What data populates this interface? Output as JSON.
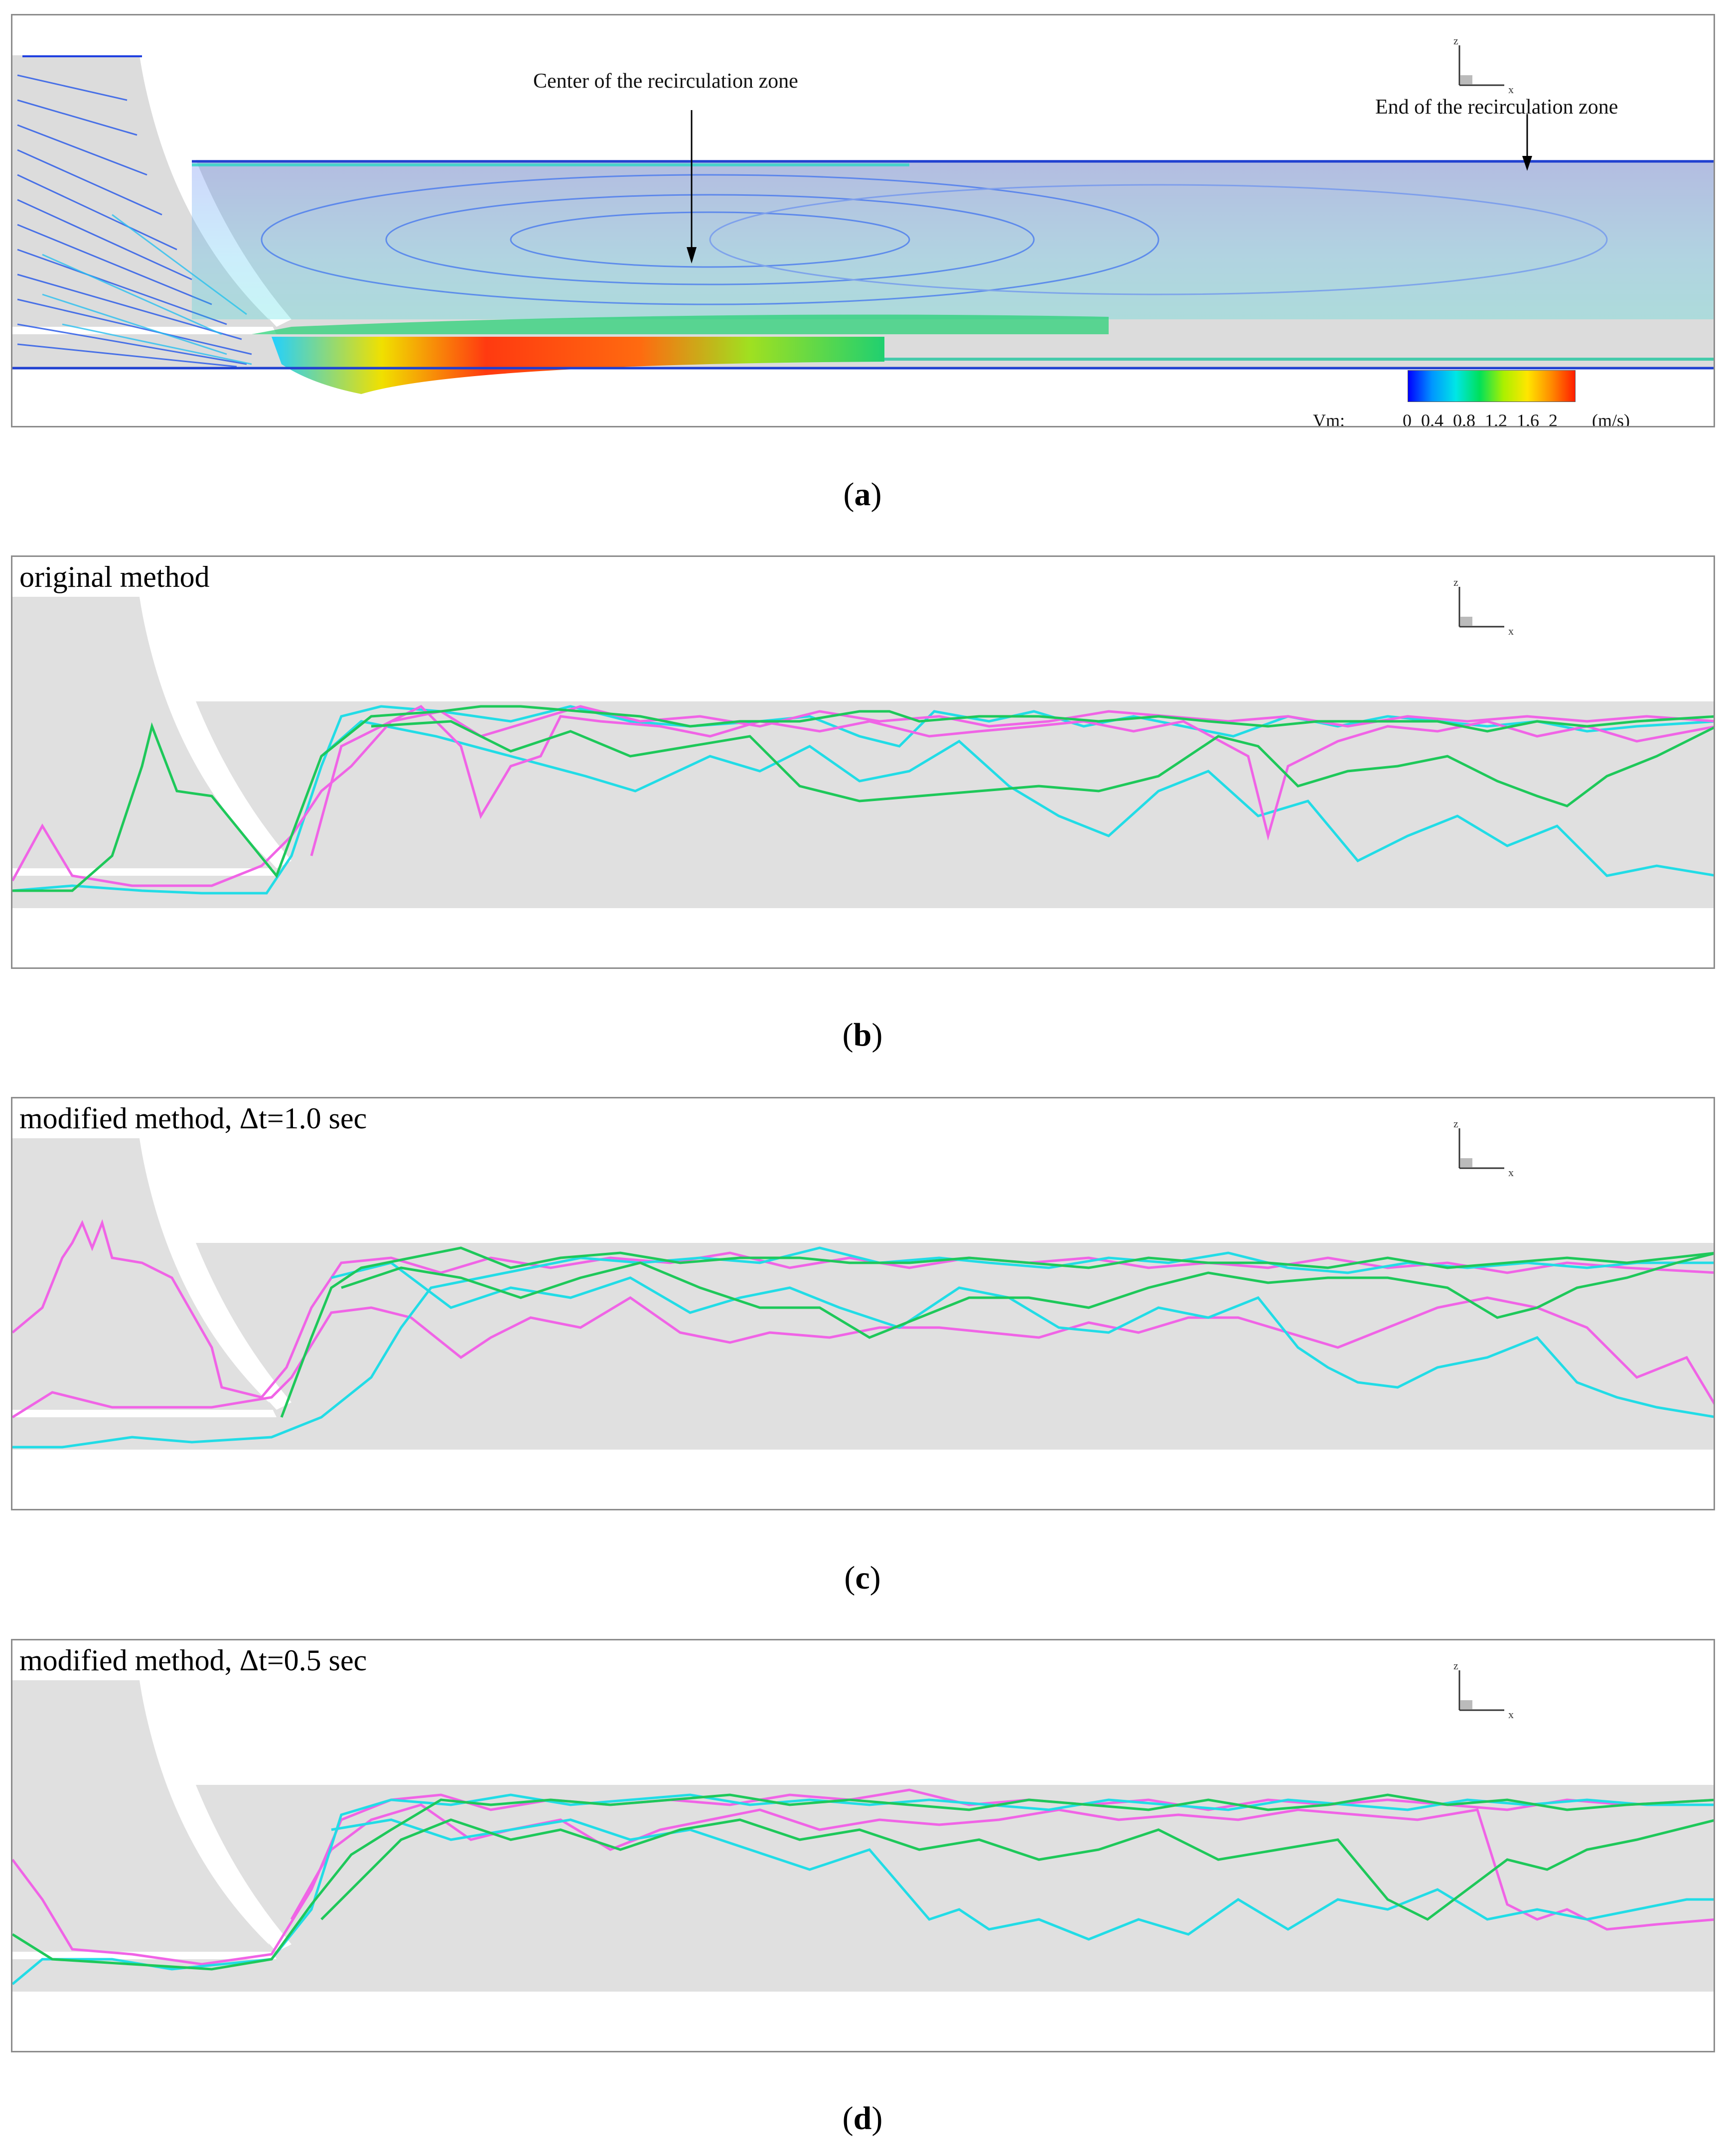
{
  "figure": {
    "panel_a": {
      "caption_letter": "a",
      "annotation_center": "Center of the recirculation zone",
      "annotation_end": "End of the recirculation zone",
      "colorbar": {
        "variable": "Vm:",
        "ticks": "0  0.4  0.8  1.2  1.6  2",
        "unit": "(m/s)",
        "colors": [
          "#0000ff",
          "#0096ff",
          "#00e6e6",
          "#00e05a",
          "#aaf000",
          "#ffe600",
          "#ff8c00",
          "#ff1e00"
        ]
      }
    },
    "panel_b": {
      "caption_letter": "b",
      "title": "original method"
    },
    "panel_c": {
      "caption_letter": "c",
      "title": "modified method, Δt=1.0 sec"
    },
    "panel_d": {
      "caption_letter": "d",
      "title": "modified method, Δt=0.5 sec"
    },
    "axis_labels": {
      "z": "z",
      "x": "x"
    },
    "trajectory_colors": {
      "cyan": "#22dce6",
      "magenta": "#f064e6",
      "green": "#1ec85a"
    },
    "domain_fill": "#e0e0e0"
  }
}
